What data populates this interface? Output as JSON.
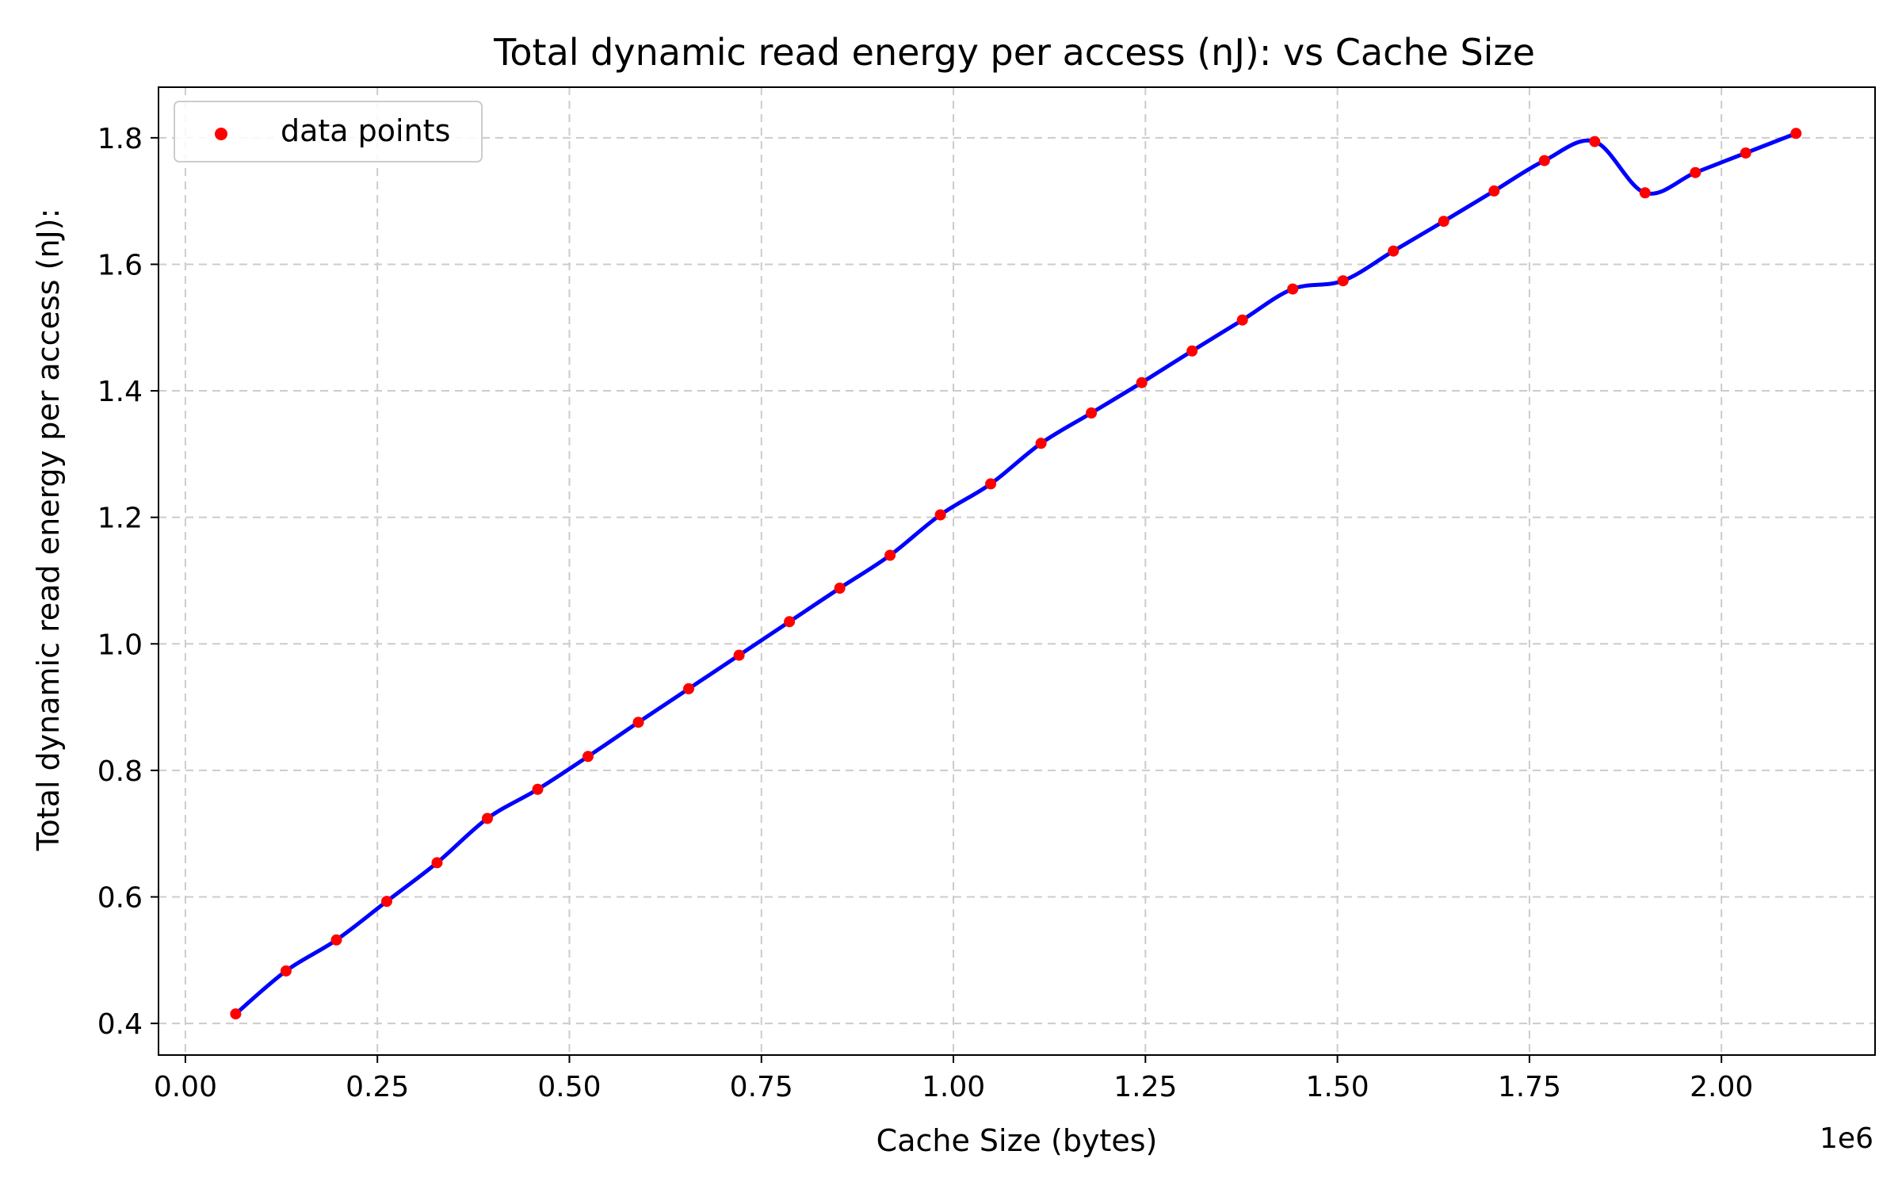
{
  "chart_data": {
    "type": "line",
    "title": "Total dynamic read energy per access (nJ): vs Cache Size",
    "xlabel": "Cache Size (bytes)",
    "ylabel": "Total dynamic read energy per access (nJ):",
    "x_offset_label": "1e6",
    "xlim": [
      -35000,
      2200000
    ],
    "ylim": [
      0.35,
      1.88
    ],
    "x_ticks": [
      0,
      250000,
      500000,
      750000,
      1000000,
      1250000,
      1500000,
      1750000,
      2000000
    ],
    "x_tick_labels": [
      "0.00",
      "0.25",
      "0.50",
      "0.75",
      "1.00",
      "1.25",
      "1.50",
      "1.75",
      "2.00"
    ],
    "y_ticks": [
      0.4,
      0.6,
      0.8,
      1.0,
      1.2,
      1.4,
      1.6,
      1.8
    ],
    "y_tick_labels": [
      "0.4",
      "0.6",
      "0.8",
      "1.0",
      "1.2",
      "1.4",
      "1.6",
      "1.8"
    ],
    "grid": true,
    "legend": {
      "position": "top-left",
      "entries": [
        "data points"
      ]
    },
    "colors": {
      "line": "#0000ff",
      "points": "#ff0000",
      "grid": "#cccccc"
    },
    "series": [
      {
        "x": [
          65536,
          131072,
          196608,
          262144,
          327680,
          393216,
          458752,
          524288,
          589824,
          655360,
          720896,
          786432,
          851968,
          917504,
          983040,
          1048576,
          1114112,
          1179648,
          1245184,
          1310720,
          1376256,
          1441792,
          1507328,
          1572864,
          1638400,
          1703936,
          1769472,
          1835008,
          1900544,
          1966080,
          2031616,
          2097152
        ],
        "y": [
          0.415,
          0.483,
          0.532,
          0.593,
          0.654,
          0.724,
          0.77,
          0.822,
          0.876,
          0.929,
          0.982,
          1.035,
          1.088,
          1.14,
          1.204,
          1.253,
          1.317,
          1.365,
          1.413,
          1.463,
          1.512,
          1.561,
          1.574,
          1.621,
          1.668,
          1.716,
          1.764,
          1.794,
          1.713,
          1.745,
          1.776,
          1.807
        ]
      }
    ]
  }
}
